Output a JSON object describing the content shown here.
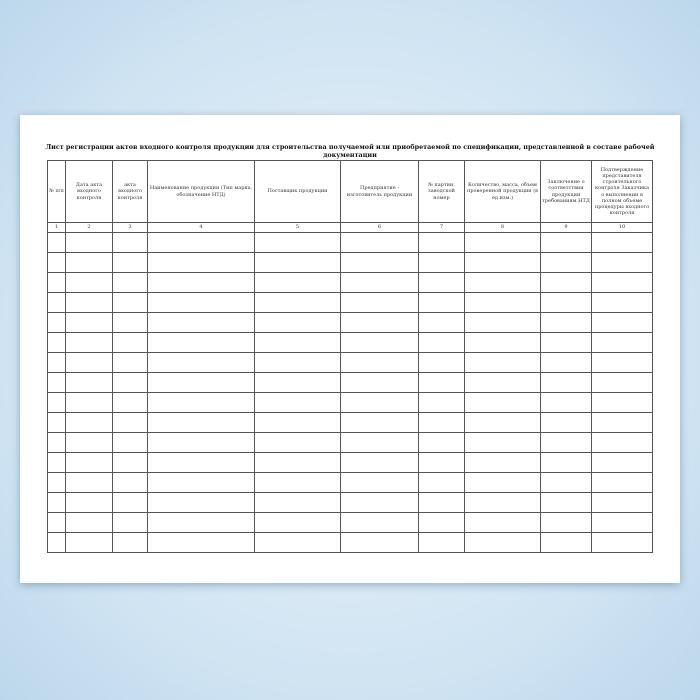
{
  "title": "Лист регистрации актов входного контроля продукции для строительства получаемой или приобретаемой по спецификации, представленной в составе рабочей документации",
  "columns": [
    {
      "header": "№ п/п",
      "num": "1"
    },
    {
      "header": "Дата акта входного контроля",
      "num": "2"
    },
    {
      "header": "акта входного контроля",
      "num": "3"
    },
    {
      "header": "Наименование продукции (Тип марка, обозначение НТД)",
      "num": "4"
    },
    {
      "header": "Поставщик продукции",
      "num": "5"
    },
    {
      "header": "Предприятие - изготовитель продукции",
      "num": "6"
    },
    {
      "header": "№ партии, заводской номер",
      "num": "7"
    },
    {
      "header": "Количество, масса, объем проверенной продукции (в ед изм.)",
      "num": "8"
    },
    {
      "header": "Заключение о соответствии продукции требованиям НТД",
      "num": "9"
    },
    {
      "header": "Подтверждение представителя строительного контроля Заказчика о выполнении в полном объеме процедуры входного контроля",
      "num": "10"
    }
  ],
  "empty_rows": 16
}
